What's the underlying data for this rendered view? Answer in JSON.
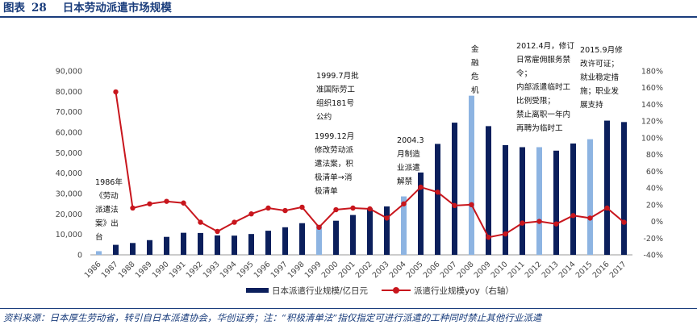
{
  "header": {
    "figure_label": "图表",
    "figure_number": "28",
    "title": "日本劳动派遣市场规模"
  },
  "source_note": "资料来源：日本厚生劳动省，转引自日本派遣协会，华创证券；注：“积极清单法”指仅指定可进行派遣的工种同时禁止其他行业派遣",
  "colors": {
    "dark_bar": "#0b1f5c",
    "light_bar": "#8db4e2",
    "line": "#c8161d",
    "header": "#1a3d7c"
  },
  "chart_data": {
    "type": "bar",
    "categories": [
      "1986",
      "1987",
      "1988",
      "1989",
      "1990",
      "1991",
      "1992",
      "1993",
      "1994",
      "1995",
      "1996",
      "1997",
      "1998",
      "1999",
      "2000",
      "2001",
      "2002",
      "2003",
      "2004",
      "2005",
      "2006",
      "2007",
      "2008",
      "2009",
      "2010",
      "2011",
      "2012",
      "2013",
      "2014",
      "2015",
      "2016",
      "2017"
    ],
    "series": [
      {
        "name": "日本派遣行业规模/亿日元",
        "axis": "left",
        "values": [
          1800,
          4900,
          5800,
          7200,
          8800,
          10800,
          10700,
          9500,
          9400,
          10200,
          11800,
          13500,
          15500,
          14600,
          16700,
          19500,
          22700,
          23700,
          28600,
          40300,
          54300,
          64700,
          77900,
          63000,
          53700,
          52700,
          52700,
          51000,
          54500,
          56600,
          65700,
          65000
        ],
        "highlighted": [
          true,
          false,
          false,
          false,
          false,
          false,
          false,
          false,
          false,
          false,
          false,
          false,
          false,
          true,
          false,
          false,
          false,
          false,
          true,
          false,
          false,
          false,
          true,
          false,
          false,
          false,
          true,
          false,
          false,
          true,
          false,
          false
        ]
      },
      {
        "name": "派遣行业规模yoy（右轴）",
        "axis": "right",
        "type": "line",
        "values": [
          null,
          155,
          16,
          21,
          24,
          22,
          -1,
          -12,
          -1,
          9,
          16,
          13,
          17,
          -7,
          14,
          16,
          15,
          4,
          21,
          41,
          35,
          19,
          20,
          -19,
          -15,
          -2,
          0,
          -3,
          7,
          4,
          16,
          -1
        ]
      }
    ],
    "y_left": {
      "ylim": [
        0,
        90000
      ],
      "ticks": [
        "0",
        "10,000",
        "20,000",
        "30,000",
        "40,000",
        "50,000",
        "60,000",
        "70,000",
        "80,000",
        "90,000"
      ]
    },
    "y_right": {
      "ylim": [
        -40,
        180
      ],
      "ticks": [
        "-40%",
        "-20%",
        "0%",
        "20%",
        "40%",
        "60%",
        "80%",
        "100%",
        "120%",
        "140%",
        "160%",
        "180%"
      ]
    },
    "grid": false,
    "legend_position": "bottom"
  },
  "annotations": [
    {
      "text": "1986年\n《劳动\n派遣法\n案》出\n台"
    },
    {
      "text": "1999.7月批\n准国际劳工\n组织181号\n公约"
    },
    {
      "text": "1999.12月\n修改劳动派\n遣法案，积\n极清单→消\n极清单"
    },
    {
      "text": "2004.3\n月制造\n业派遣\n解禁"
    },
    {
      "text": "金\n融\n危\n机"
    },
    {
      "text": "2012.4月，修订\n日常雇佣服务禁\n令；\n内部派遣临时工\n比例受限；\n禁止离职一年内\n再聘为临时工"
    },
    {
      "text": "2015.9月修\n改许可证；\n就业稳定措\n施；职业发\n展支持"
    }
  ]
}
